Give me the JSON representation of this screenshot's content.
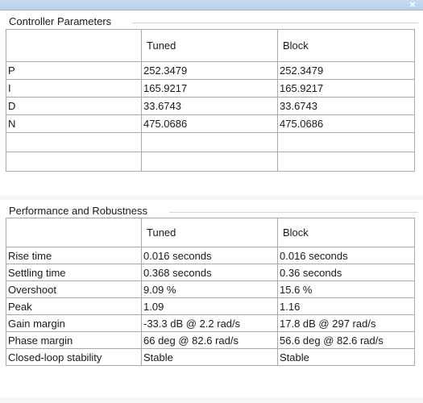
{
  "window": {
    "close_symbol": "×"
  },
  "controller": {
    "title": "Controller Parameters",
    "columns": [
      "",
      "Tuned",
      "Block"
    ],
    "rows": [
      [
        "P",
        "252.3479",
        "252.3479"
      ],
      [
        "I",
        "165.9217",
        "165.9217"
      ],
      [
        "D",
        "33.6743",
        "33.6743"
      ],
      [
        "N",
        "475.0686",
        "475.0686"
      ],
      [
        "",
        "",
        ""
      ],
      [
        "",
        "",
        ""
      ]
    ]
  },
  "performance": {
    "title": "Performance and Robustness",
    "columns": [
      "",
      "Tuned",
      "Block"
    ],
    "rows": [
      [
        "Rise time",
        "0.016 seconds",
        "0.016 seconds"
      ],
      [
        "Settling time",
        "0.368 seconds",
        "0.36 seconds"
      ],
      [
        "Overshoot",
        "9.09 %",
        "15.6 %"
      ],
      [
        "Peak",
        "1.09",
        "1.16"
      ],
      [
        "Gain margin",
        "-33.3 dB @ 2.2 rad/s",
        "17.8 dB @ 297 rad/s"
      ],
      [
        "Phase margin",
        "66 deg @ 82.6 rad/s",
        "56.6 deg @ 82.6 rad/s"
      ],
      [
        "Closed-loop stability",
        "Stable",
        "Stable"
      ]
    ]
  }
}
